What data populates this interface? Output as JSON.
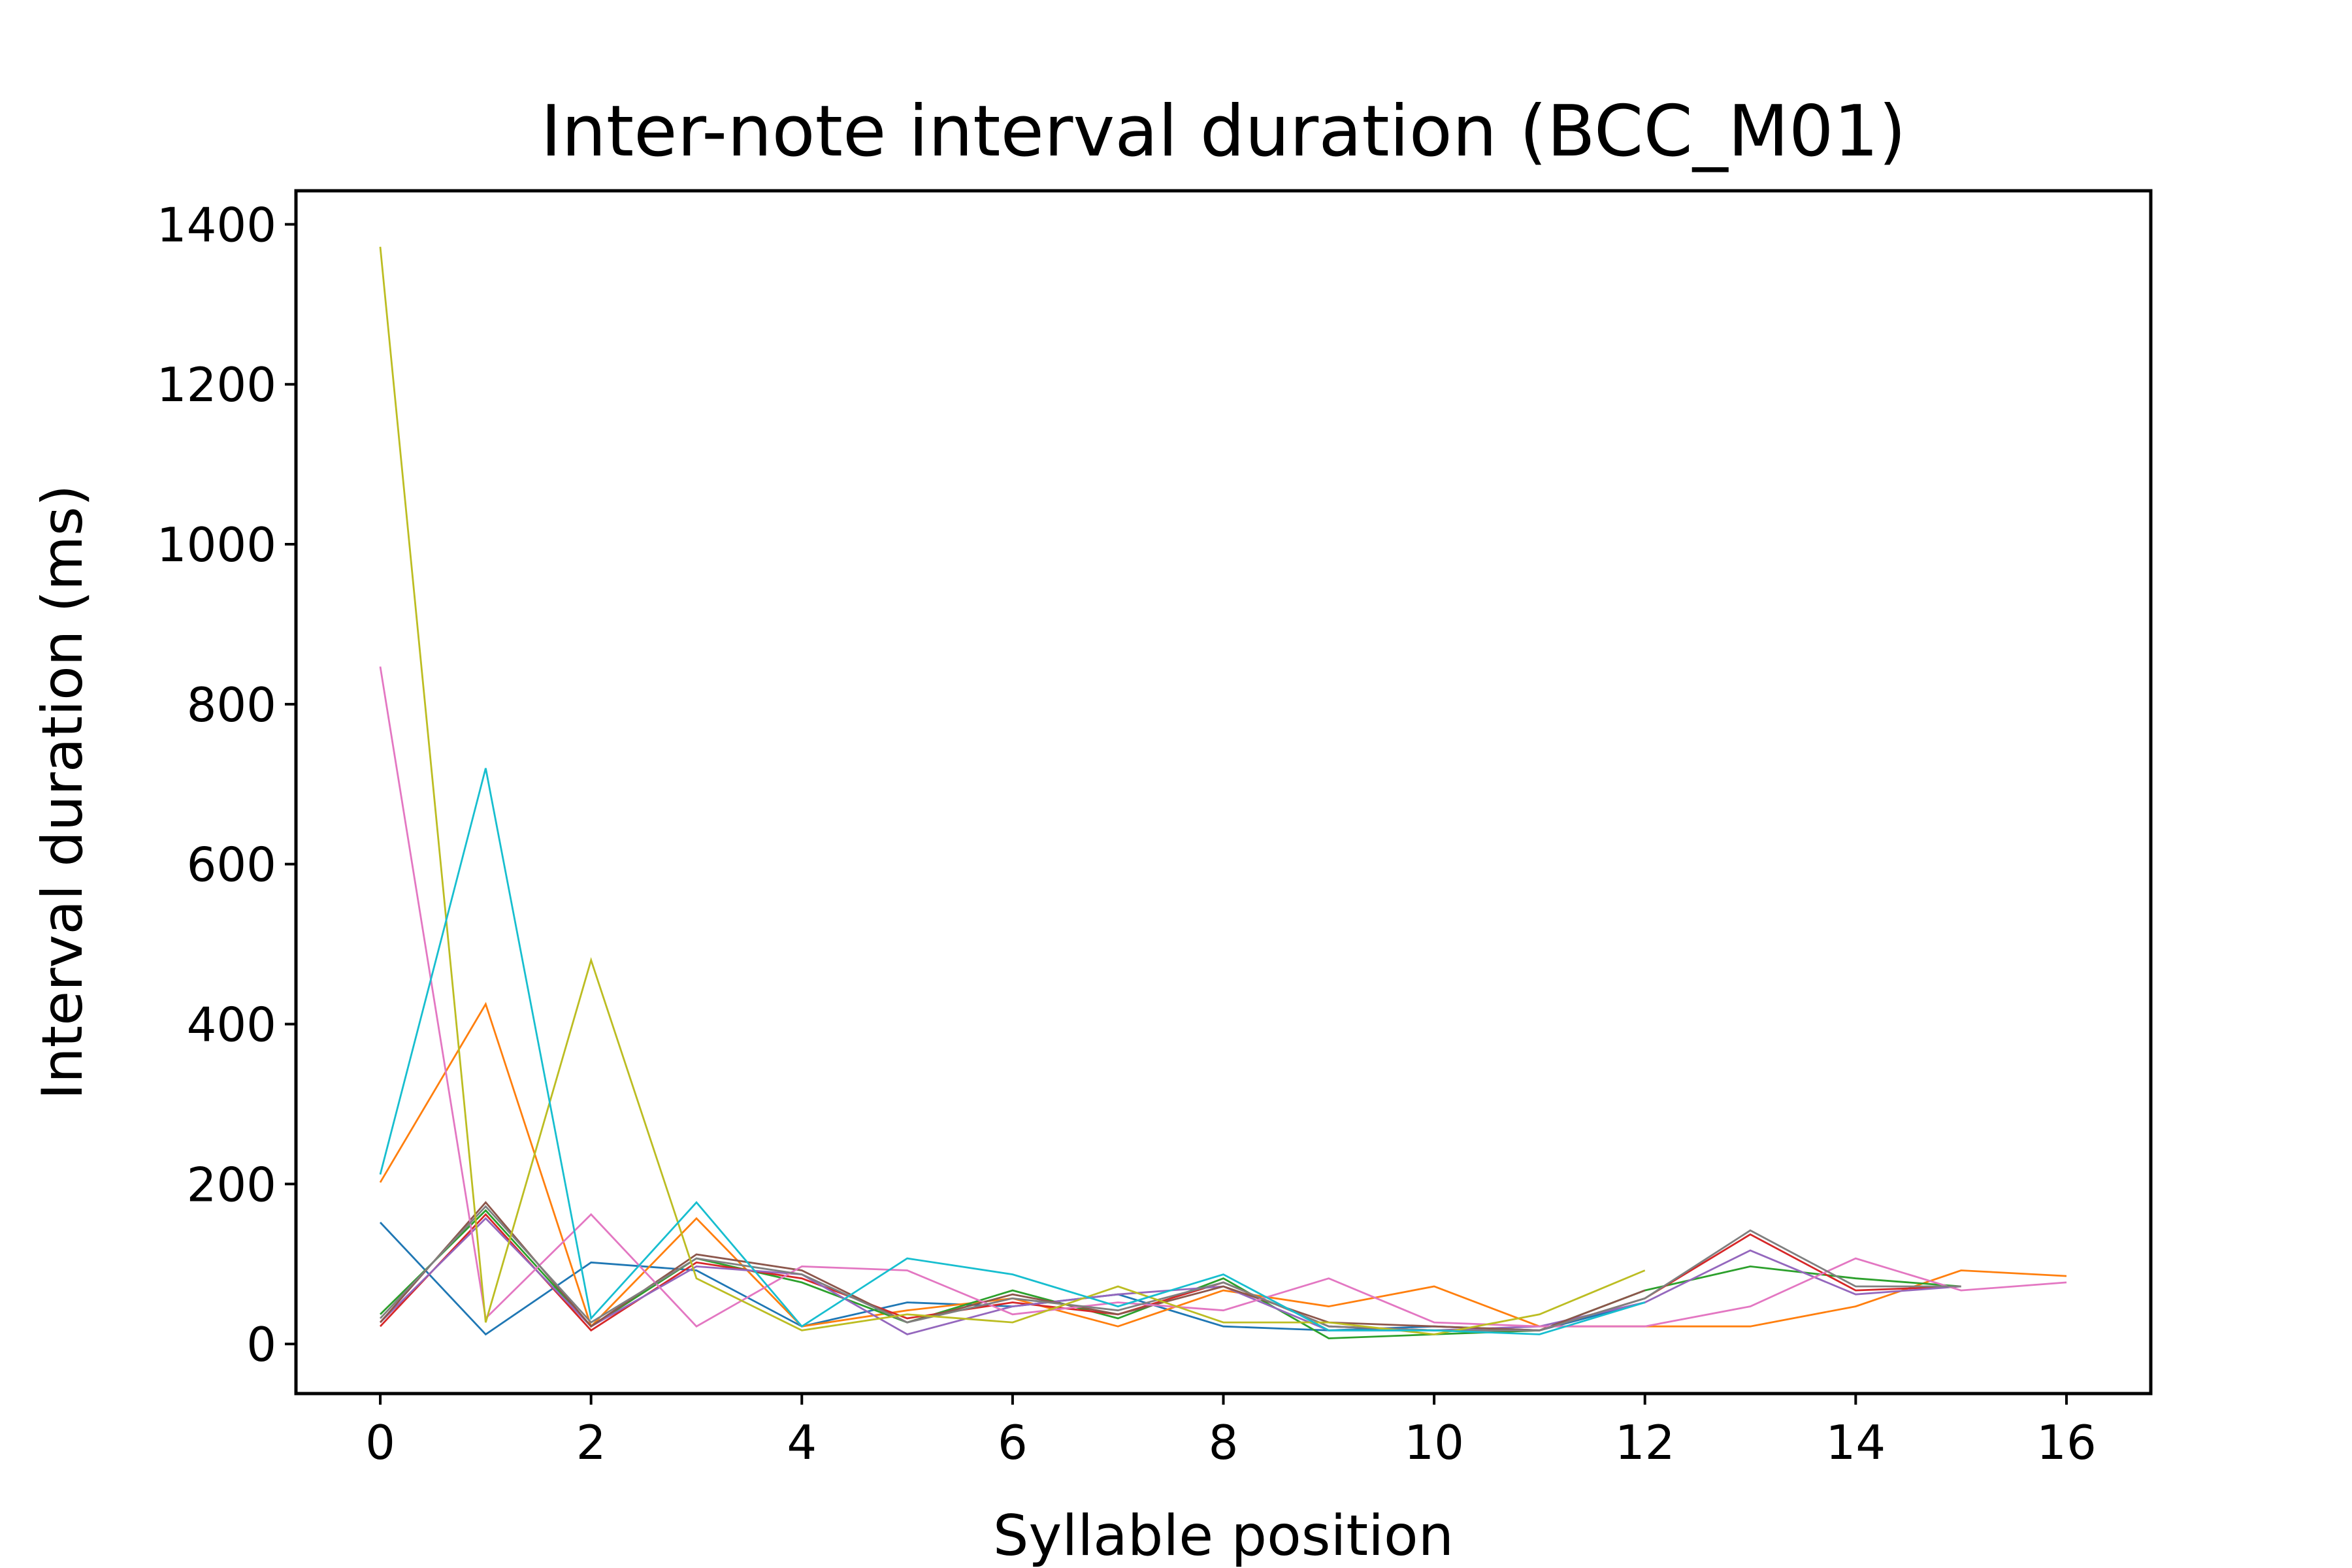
{
  "chart_data": {
    "type": "line",
    "title": "Inter-note interval duration (BCC_M01)",
    "xlabel": "Syllable position",
    "ylabel": "Interval duration (ms)",
    "xlim": [
      -0.8,
      16.8
    ],
    "ylim": [
      -62,
      1442
    ],
    "xticks": [
      0,
      2,
      4,
      6,
      8,
      10,
      12,
      14,
      16
    ],
    "yticks": [
      0,
      200,
      400,
      600,
      800,
      1000,
      1200,
      1400
    ],
    "grid": false,
    "legend": false,
    "series": [
      {
        "color": "#1f77b4",
        "x": [
          0,
          1,
          2,
          3,
          4,
          5,
          6,
          7,
          8,
          9,
          10,
          11,
          12
        ],
        "values": [
          152,
          12,
          102,
          92,
          22,
          52,
          47,
          62,
          22,
          17,
          22,
          17,
          52
        ]
      },
      {
        "color": "#ff7f0e",
        "x": [
          0,
          1,
          2,
          3,
          4,
          5,
          6,
          7,
          8,
          9,
          10,
          11,
          12,
          13,
          14,
          15,
          16
        ],
        "values": [
          202,
          425,
          22,
          157,
          22,
          42,
          57,
          22,
          67,
          47,
          72,
          22,
          22,
          22,
          47,
          92,
          85
        ]
      },
      {
        "color": "#2ca02c",
        "x": [
          0,
          1,
          2,
          3,
          4,
          5,
          6,
          7,
          8,
          9,
          10,
          11,
          12,
          13,
          14,
          15
        ],
        "values": [
          37,
          167,
          22,
          107,
          77,
          27,
          67,
          32,
          82,
          7,
          12,
          17,
          67,
          97,
          82,
          72
        ]
      },
      {
        "color": "#d62728",
        "x": [
          0,
          1,
          2,
          3,
          4,
          5,
          6,
          7,
          8,
          9,
          10,
          11,
          12,
          13,
          14,
          15
        ],
        "values": [
          22,
          162,
          17,
          102,
          82,
          32,
          52,
          37,
          77,
          22,
          17,
          17,
          57,
          137,
          67,
          72
        ]
      },
      {
        "color": "#9467bd",
        "x": [
          0,
          1,
          2,
          3,
          4,
          5,
          6,
          7,
          8,
          9,
          10,
          11,
          12,
          13,
          14,
          15
        ],
        "values": [
          27,
          157,
          22,
          97,
          87,
          12,
          47,
          62,
          72,
          17,
          17,
          22,
          52,
          117,
          62,
          72
        ]
      },
      {
        "color": "#8c564b",
        "x": [
          0,
          1,
          2,
          3,
          4,
          5,
          6,
          7,
          8,
          9,
          10,
          11,
          12
        ],
        "values": [
          27,
          177,
          22,
          112,
          92,
          27,
          62,
          37,
          72,
          27,
          22,
          17,
          67
        ]
      },
      {
        "color": "#e377c2",
        "x": [
          0,
          1,
          2,
          3,
          4,
          5,
          6,
          7,
          8,
          9,
          10,
          11,
          12,
          13,
          14,
          15,
          16
        ],
        "values": [
          847,
          32,
          162,
          22,
          97,
          92,
          37,
          52,
          42,
          82,
          27,
          22,
          22,
          47,
          107,
          67,
          77
        ]
      },
      {
        "color": "#7f7f7f",
        "x": [
          0,
          1,
          2,
          3,
          4,
          5,
          6,
          7,
          8,
          9,
          10,
          11,
          12,
          13,
          14,
          15
        ],
        "values": [
          32,
          172,
          27,
          107,
          87,
          27,
          57,
          42,
          77,
          22,
          17,
          17,
          57,
          142,
          72,
          72
        ]
      },
      {
        "color": "#bcbd22",
        "x": [
          0,
          1,
          2,
          3,
          4,
          5,
          6,
          7,
          8,
          9,
          10,
          11,
          12
        ],
        "values": [
          1372,
          27,
          480,
          82,
          17,
          37,
          27,
          72,
          27,
          27,
          12,
          37,
          92
        ]
      },
      {
        "color": "#17becf",
        "x": [
          0,
          1,
          2,
          3,
          4,
          5,
          6,
          7,
          8,
          9,
          10,
          11,
          12
        ],
        "values": [
          212,
          720,
          32,
          177,
          22,
          107,
          87,
          47,
          87,
          17,
          17,
          12,
          52
        ]
      }
    ]
  }
}
